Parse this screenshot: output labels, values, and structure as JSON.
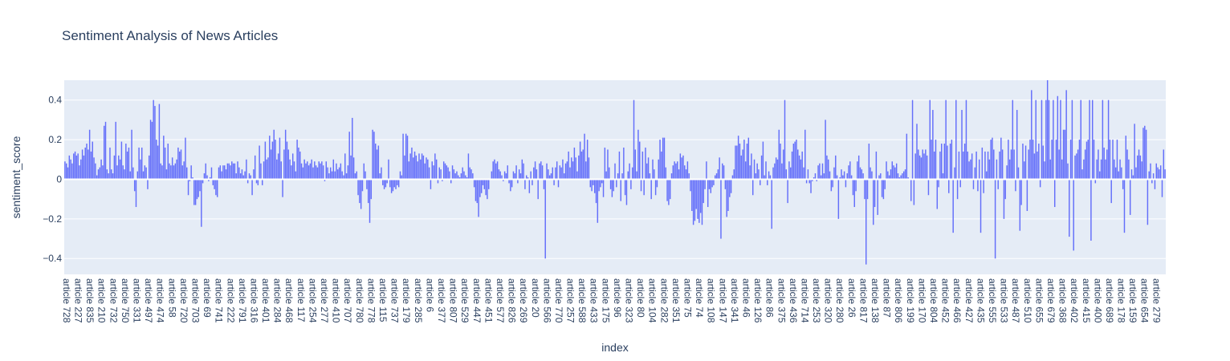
{
  "chart_data": {
    "type": "bar",
    "title": "Sentiment Analysis of News Articles",
    "xlabel": "index",
    "ylabel": "sentiment_score",
    "ylim": [
      -0.48,
      0.5
    ],
    "grid": true,
    "legend": "none",
    "bar_color": "#636efa",
    "plot_bg": "#e5ecf6",
    "yticks": [
      -0.4,
      -0.2,
      0,
      0.2,
      0.4
    ],
    "ytick_labels": [
      "−0.4",
      "−0.2",
      "0",
      "0.2",
      "0.4"
    ],
    "xtick_labels": [
      "article 728",
      "article 227",
      "article 835",
      "article 210",
      "article 732",
      "article 750",
      "article 331",
      "article 497",
      "article 474",
      "article 58",
      "article 720",
      "article 703",
      "article 69",
      "article 741",
      "article 222",
      "article 791",
      "article 316",
      "article 401",
      "article 284",
      "article 468",
      "article 117",
      "article 254",
      "article 277",
      "article 410",
      "article 707",
      "article 780",
      "article 778",
      "article 115",
      "article 737",
      "article 179",
      "article 285",
      "article 6",
      "article 377",
      "article 807",
      "article 529",
      "article 447",
      "article 451",
      "article 577",
      "article 826",
      "article 269",
      "article 20",
      "article 566",
      "article 770",
      "article 257",
      "article 588",
      "article 433",
      "article 175",
      "article 96",
      "article 323",
      "article 80",
      "article 104",
      "article 282",
      "article 351",
      "article 75",
      "article 74",
      "article 108",
      "article 147",
      "article 341",
      "article 46",
      "article 126",
      "article 86",
      "article 375",
      "article 436",
      "article 714",
      "article 253",
      "article 320",
      "article 280",
      "article 26",
      "article 817",
      "article 138",
      "article 87",
      "article 806",
      "article 199",
      "article 170",
      "article 804",
      "article 452",
      "article 466",
      "article 427",
      "article 435",
      "article 555",
      "article 533",
      "article 487",
      "article 510",
      "article 655",
      "article 679",
      "article 368",
      "article 402",
      "article 415",
      "article 400",
      "article 689",
      "article 178",
      "article 159",
      "article 654",
      "article 279"
    ],
    "values": [
      0.09,
      0.08,
      0.06,
      0.12,
      0.1,
      0.08,
      0.13,
      0.14,
      0.12,
      0.13,
      0.07,
      0.1,
      0.15,
      0.12,
      0.16,
      0.18,
      0.15,
      0.25,
      0.14,
      0.19,
      0.11,
      0.08,
      0.02,
      0.05,
      0.06,
      0.1,
      0.07,
      0.27,
      0.29,
      0.05,
      0.03,
      0.16,
      0.05,
      0.03,
      0.12,
      0.29,
      0.07,
      0.12,
      0.1,
      0.19,
      0.07,
      0.05,
      0.18,
      0.14,
      0.16,
      0.04,
      0.25,
      0.06,
      -0.06,
      -0.14,
      0.04,
      0.16,
      0.1,
      0.16,
      0.04,
      0.07,
      0.06,
      -0.05,
      0.12,
      0.3,
      0.29,
      0.4,
      0.37,
      0.2,
      0.17,
      0.38,
      0.08,
      0.07,
      0.22,
      0.16,
      0.05,
      0.18,
      0.08,
      0.07,
      0.11,
      0.07,
      0.08,
      0.1,
      0.16,
      0.14,
      0.15,
      0.07,
      0.09,
      0.21,
      0.06,
      -0.08,
      -0.01,
      0.07,
      0.01,
      -0.13,
      -0.13,
      -0.1,
      -0.09,
      -0.06,
      -0.24,
      -0.02,
      0.03,
      0.08,
      0.02,
      -0.01,
      0.01,
      0.06,
      -0.03,
      -0.05,
      -0.08,
      -0.09,
      0.06,
      0.07,
      0.04,
      0.07,
      0.07,
      0.05,
      0.08,
      0.08,
      0.07,
      0.09,
      0.08,
      0.08,
      0.03,
      0.09,
      0.06,
      0.03,
      0.05,
      0.02,
      0.04,
      0.1,
      -0.02,
      0.03,
      0.02,
      -0.08,
      0.05,
      0.12,
      -0.02,
      -0.03,
      0.17,
      0.08,
      -0.03,
      0.09,
      0.19,
      0.1,
      0.11,
      0.22,
      0.15,
      0.19,
      0.25,
      0.2,
      0.1,
      0.13,
      0.21,
      0.09,
      -0.09,
      0.15,
      0.25,
      0.19,
      0.15,
      0.1,
      0.07,
      0.13,
      0.09,
      0.04,
      0.2,
      0.16,
      0.14,
      0.08,
      0.06,
      0.1,
      0.08,
      0.09,
      0.07,
      0.08,
      0.1,
      0.06,
      0.09,
      0.07,
      0.06,
      0.09,
      0.08,
      0.09,
      0.07,
      -0.01,
      0.09,
      0.06,
      0.03,
      0.06,
      0.04,
      0.1,
      0.04,
      0.08,
      0.05,
      0.06,
      0.08,
      0.04,
      0.02,
      0.13,
      0.03,
      0.07,
      0.24,
      0.12,
      0.31,
      0.11,
      0.03,
      0.04,
      -0.08,
      -0.12,
      -0.15,
      -0.06,
      0.08,
      0.04,
      -0.05,
      -0.12,
      -0.22,
      -0.1,
      0.25,
      0.24,
      0.18,
      0.15,
      0.17,
      0.03,
      0.06,
      -0.03,
      -0.05,
      -0.04,
      -0.02,
      0.1,
      -0.04,
      -0.07,
      -0.06,
      -0.04,
      -0.05,
      -0.03,
      -0.04,
      0.04,
      0.02,
      0.23,
      0.12,
      0.23,
      0.22,
      0.09,
      0.13,
      0.16,
      0.11,
      0.14,
      0.12,
      0.09,
      0.13,
      0.1,
      0.13,
      0.12,
      0.08,
      0.11,
      0.1,
      0.06,
      -0.05,
      0.09,
      0.07,
      0.13,
      0.1,
      -0.02,
      0.06,
      0.05,
      -0.01,
      0.09,
      0.08,
      0.07,
      0.06,
      0.04,
      -0.02,
      0.07,
      0.05,
      0.03,
      0.04,
      0.02,
      0.01,
      0.03,
      0.06,
      0.04,
      0.02,
      0.01,
      0.13,
      0.06,
      0.05,
      0.03,
      -0.04,
      -0.11,
      -0.12,
      -0.19,
      -0.09,
      -0.07,
      -0.03,
      -0.05,
      -0.08,
      -0.1,
      -0.05,
      0.0,
      0.04,
      0.09,
      0.1,
      0.08,
      0.09,
      0.05,
      0.04,
      0.02,
      -0.01,
      0.04,
      0.03,
      0.07,
      -0.02,
      -0.06,
      -0.04,
      0.04,
      0.03,
      0.07,
      -0.02,
      0.05,
      0.03,
      0.1,
      0.08,
      -0.05,
      0.02,
      0.01,
      -0.07,
      0.04,
      -0.03,
      0.06,
      0.09,
      0.05,
      -0.1,
      0.08,
      0.09,
      0.07,
      -0.05,
      -0.4,
      0.08,
      0.05,
      0.02,
      0.03,
      0.06,
      -0.03,
      0.06,
      0.09,
      -0.04,
      0.07,
      0.06,
      0.1,
      0.03,
      0.08,
      0.09,
      0.14,
      0.06,
      0.11,
      0.09,
      0.16,
      0.11,
      0.04,
      0.12,
      0.19,
      0.14,
      0.15,
      0.23,
      0.09,
      0.2,
      0.11,
      -0.04,
      -0.06,
      -0.03,
      -0.07,
      -0.12,
      -0.22,
      -0.06,
      -0.04,
      -0.02,
      -0.09,
      0.16,
      0.04,
      0.15,
      0.06,
      -0.05,
      -0.09,
      -0.06,
      0.08,
      -0.04,
      0.03,
      0.14,
      -0.11,
      0.03,
      0.16,
      -0.08,
      -0.13,
      0.04,
      0.08,
      -0.05,
      0.06,
      0.4,
      0.15,
      0.04,
      0.25,
      0.19,
      -0.06,
      0.14,
      -0.08,
      0.16,
      0.08,
      0.11,
      0.03,
      -0.1,
      0.1,
      0.05,
      -0.08,
      -0.04,
      0.1,
      0.2,
      0.14,
      0.21,
      0.21,
      0.06,
      -0.11,
      -0.13,
      -0.1,
      0.03,
      0.07,
      0.09,
      0.08,
      0.09,
      0.05,
      0.13,
      0.11,
      0.12,
      0.07,
      0.05,
      0.09,
      0.03,
      -0.06,
      -0.16,
      -0.23,
      -0.21,
      -0.15,
      -0.2,
      -0.22,
      -0.17,
      -0.23,
      -0.12,
      -0.05,
      0.09,
      -0.14,
      -0.05,
      -0.07,
      -0.04,
      -0.03,
      0.02,
      0.03,
      0.05,
      0.11,
      -0.3,
      0.08,
      0.07,
      -0.05,
      -0.19,
      -0.16,
      -0.09,
      -0.07,
      0.02,
      0.05,
      0.17,
      0.17,
      0.22,
      0.18,
      0.12,
      0.15,
      0.2,
      0.09,
      0.18,
      0.21,
      0.07,
      0.13,
      -0.08,
      0.1,
      0.03,
      0.08,
      0.05,
      -0.03,
      0.12,
      0.19,
      0.02,
      0.09,
      -0.03,
      0.04,
      0.02,
      -0.25,
      0.06,
      0.08,
      0.11,
      0.1,
      0.25,
      0.18,
      0.08,
      0.15,
      0.4,
      0.05,
      -0.12,
      0.09,
      0.06,
      0.14,
      0.18,
      0.19,
      0.2,
      0.15,
      0.12,
      0.1,
      0.14,
      0.06,
      0.25,
      -0.02,
      0.05,
      -0.02,
      -0.07,
      -0.01,
      0.01,
      0.03,
      -0.01,
      0.07,
      0.08,
      0.02,
      0.08,
      0.03,
      0.3,
      0.12,
      0.1,
      0.04,
      -0.06,
      -0.04,
      0.06,
      0.12,
      0.02,
      -0.2,
      0.01,
      0.05,
      0.02,
      0.04,
      -0.04,
      0.03,
      0.07,
      0.09,
      0.02,
      -0.08,
      -0.14,
      -0.06,
      0.09,
      0.12,
      0.06,
      0.05,
      0.03,
      -0.1,
      -0.43,
      -0.1,
      0.18,
      0.06,
      0.04,
      -0.23,
      -0.14,
      0.14,
      -0.18,
      0.02,
      0.03,
      -0.09,
      -0.1,
      -0.05,
      0.09,
      0.04,
      0.02,
      0.05,
      0.09,
      0.07,
      0.06,
      0.08,
      0.03,
      0.01,
      0.02,
      0.03,
      0.04,
      0.05,
      0.23,
      0.01,
      0.0,
      -0.11,
      0.4,
      -0.13,
      0.13,
      0.28,
      0.15,
      0.12,
      0.11,
      0.15,
      0.13,
      0.15,
      0.12,
      -0.08,
      0.4,
      0.2,
      0.35,
      0.14,
      0.2,
      -0.15,
      -0.04,
      0.14,
      0.18,
      0.03,
      0.18,
      0.4,
      0.17,
      -0.07,
      0.18,
      0.2,
      -0.27,
      0.06,
      0.4,
      -0.1,
      0.14,
      -0.04,
      0.35,
      0.14,
      0.18,
      0.4,
      0.14,
      0.09,
      0.1,
      0.13,
      -0.05,
      0.06,
      0.14,
      -0.06,
      0.1,
      -0.27,
      0.16,
      -0.07,
      0.14,
      0.04,
      0.14,
      0.1,
      0.2,
      0.21,
      0.15,
      -0.4,
      0.1,
      -0.05,
      0.14,
      0.21,
      0.15,
      -0.2,
      -0.1,
      0.07,
      0.2,
      0.1,
      0.15,
      0.4,
      0.15,
      -0.06,
      0.35,
      0.06,
      -0.26,
      -0.13,
      0.18,
      0.09,
      0.17,
      -0.16,
      0.15,
      0.2,
      0.45,
      0.2,
      0.13,
      0.4,
      0.14,
      0.18,
      -0.04,
      0.4,
      0.17,
      0.09,
      0.4,
      0.5,
      0.4,
      0.1,
      0.2,
      0.4,
      -0.14,
      0.2,
      0.42,
      0.15,
      0.4,
      0.1,
      0.25,
      0.25,
      0.45,
      0.08,
      -0.29,
      0.2,
      0.4,
      -0.36,
      0.12,
      0.13,
      0.15,
      0.2,
      0.4,
      0.05,
      0.1,
      0.15,
      0.19,
      0.2,
      0.4,
      -0.31,
      0.4,
      0.2,
      -0.02,
      0.1,
      0.15,
      0.04,
      0.1,
      0.4,
      0.16,
      0.1,
      0.15,
      0.4,
      0.2,
      -0.12,
      0.2,
      0.1,
      0.06,
      0.2,
      0.04,
      0.1,
      0.06,
      -0.05,
      -0.27,
      0.22,
      0.15,
      0.1,
      -0.18,
      0.05,
      0.02,
      0.28,
      0.06,
      0.12,
      0.15,
      0.12,
      0.09,
      0.26,
      0.27,
      0.25,
      -0.23,
      0.04,
      0.08,
      -0.02,
      0.03,
      -0.05,
      0.08,
      0.06,
      0.05,
      0.07,
      -0.09,
      0.15,
      0.05
    ]
  }
}
